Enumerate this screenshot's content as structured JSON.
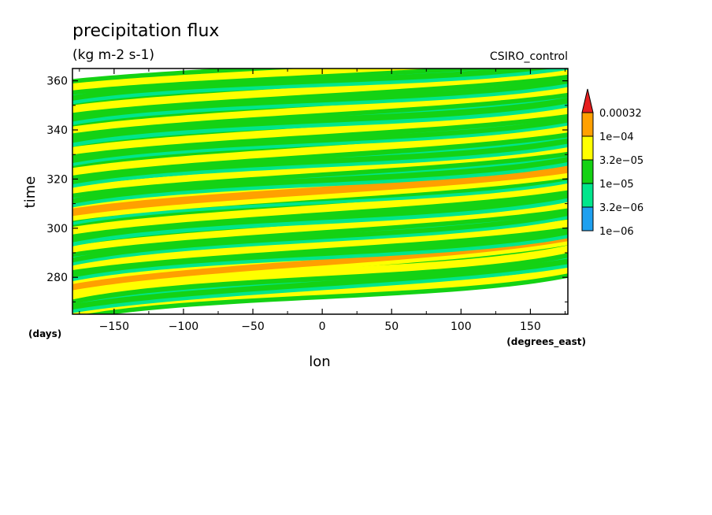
{
  "chart_data": {
    "type": "heatmap",
    "title": "precipitation flux",
    "subtitle": "(kg m-2 s-1)",
    "annotation": "CSIRO_control",
    "xlabel": "lon",
    "ylabel": "time",
    "x_units": "(degrees_east)",
    "y_units": "(days)",
    "xlim": [
      -180,
      177
    ],
    "ylim": [
      265,
      365
    ],
    "x_ticks": [
      -150,
      -100,
      -50,
      0,
      50,
      100,
      150
    ],
    "y_ticks": [
      280,
      300,
      320,
      340,
      360
    ],
    "x_tick_labels": [
      "−150",
      "−100",
      "−50",
      "0",
      "50",
      "100",
      "150"
    ],
    "y_tick_labels": [
      "280",
      "300",
      "320",
      "340",
      "360"
    ],
    "grid": false,
    "legend_position": "right",
    "colorbar": {
      "levels": [
        1e-06,
        3.2e-06,
        1e-05,
        3.2e-05,
        0.0001,
        0.00032
      ],
      "level_labels": [
        "1e−06",
        "3.2e−06",
        "1e−05",
        "3.2e−05",
        "1e−04",
        "0.00032"
      ],
      "colors": [
        "#1ea0f0",
        "#00e68c",
        "#14d214",
        "#ffff00",
        "#ffa000",
        "#e61e1e"
      ]
    },
    "bands": [
      {
        "lon": [
          -180,
          177
        ],
        "time": [
          265.5,
          283.0
        ],
        "width": 2.0,
        "level": 3
      },
      {
        "lon": [
          -180,
          177
        ],
        "time": [
          268.0,
          286.5
        ],
        "width": 1.6,
        "level": 2
      },
      {
        "lon": [
          -180,
          177
        ],
        "time": [
          272.5,
          291.5
        ],
        "width": 2.2,
        "level": 3
      },
      {
        "lon": [
          -180,
          177
        ],
        "time": [
          276.0,
          296.0
        ],
        "width": 1.8,
        "level": 4
      },
      {
        "lon": [
          -180,
          177
        ],
        "time": [
          281.0,
          298.5
        ],
        "width": 1.6,
        "level": 2
      },
      {
        "lon": [
          -180,
          177
        ],
        "time": [
          284.5,
          302.0
        ],
        "width": 2.2,
        "level": 3
      },
      {
        "lon": [
          -180,
          177
        ],
        "time": [
          287.0,
          306.0
        ],
        "width": 1.4,
        "level": 2
      },
      {
        "lon": [
          -180,
          177
        ],
        "time": [
          291.5,
          309.5
        ],
        "width": 2.0,
        "level": 3
      },
      {
        "lon": [
          -180,
          177
        ],
        "time": [
          295.5,
          313.5
        ],
        "width": 1.8,
        "level": 2
      },
      {
        "lon": [
          -180,
          177
        ],
        "time": [
          299.0,
          317.0
        ],
        "width": 2.2,
        "level": 3
      },
      {
        "lon": [
          -180,
          177
        ],
        "time": [
          303.5,
          320.5
        ],
        "width": 1.4,
        "level": 2
      },
      {
        "lon": [
          -180,
          177
        ],
        "time": [
          306.5,
          324.0
        ],
        "width": 2.2,
        "level": 4
      },
      {
        "lon": [
          -180,
          177
        ],
        "time": [
          311.0,
          328.0
        ],
        "width": 1.6,
        "level": 2
      },
      {
        "lon": [
          -180,
          177
        ],
        "time": [
          315.5,
          332.5
        ],
        "width": 2.0,
        "level": 3
      },
      {
        "lon": [
          -180,
          177
        ],
        "time": [
          319.0,
          335.5
        ],
        "width": 1.6,
        "level": 2
      },
      {
        "lon": [
          -180,
          177
        ],
        "time": [
          323.0,
          340.5
        ],
        "width": 2.2,
        "level": 3
      },
      {
        "lon": [
          -180,
          177
        ],
        "time": [
          327.5,
          344.0
        ],
        "width": 1.4,
        "level": 2
      },
      {
        "lon": [
          -180,
          177
        ],
        "time": [
          331.5,
          348.0
        ],
        "width": 2.2,
        "level": 3
      },
      {
        "lon": [
          -180,
          177
        ],
        "time": [
          336.0,
          352.0
        ],
        "width": 1.8,
        "level": 2
      },
      {
        "lon": [
          -180,
          177
        ],
        "time": [
          340.0,
          356.5
        ],
        "width": 2.0,
        "level": 3
      },
      {
        "lon": [
          -180,
          177
        ],
        "time": [
          344.5,
          360.0
        ],
        "width": 1.6,
        "level": 2
      },
      {
        "lon": [
          -180,
          177
        ],
        "time": [
          348.5,
          364.0
        ],
        "width": 2.2,
        "level": 3
      },
      {
        "lon": [
          -180,
          177
        ],
        "time": [
          353.0,
          367.0
        ],
        "width": 1.6,
        "level": 2
      },
      {
        "lon": [
          -180,
          177
        ],
        "time": [
          357.5,
          370.5
        ],
        "width": 2.0,
        "level": 3
      }
    ]
  }
}
